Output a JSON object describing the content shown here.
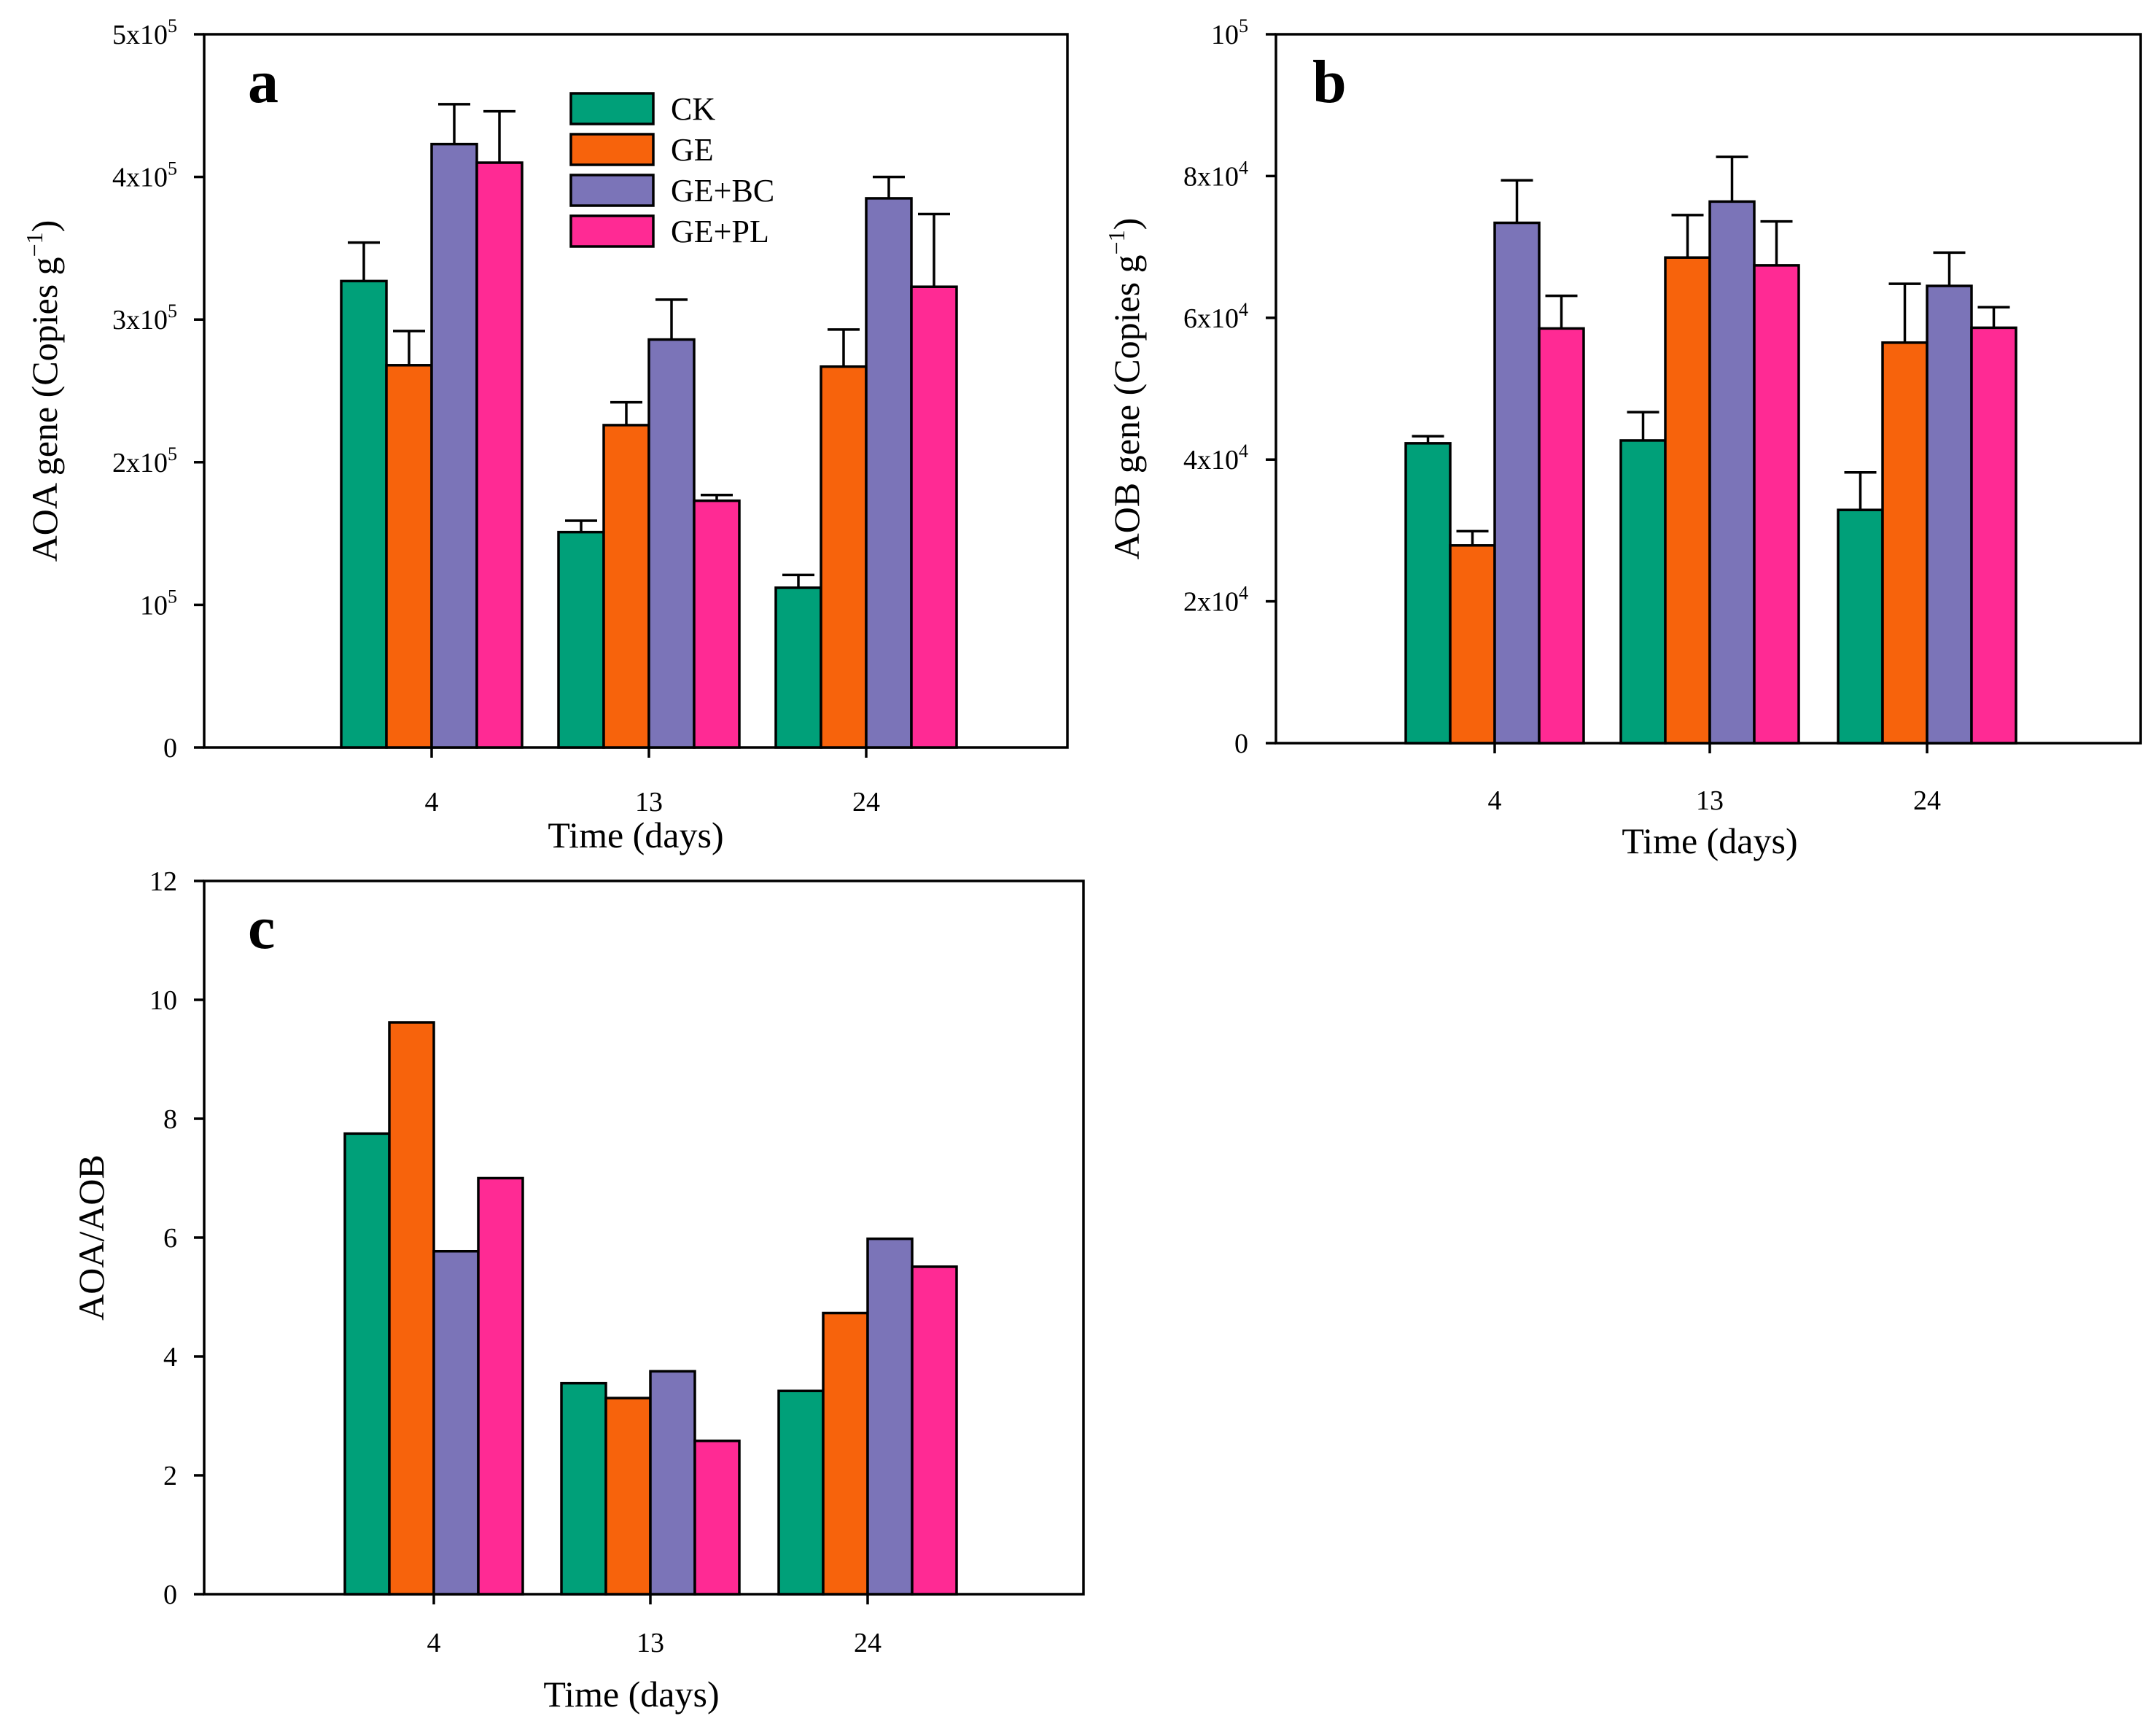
{
  "colors": {
    "CK": "#00A079",
    "GE": "#F7630C",
    "GE+BC": "#7B74B8",
    "GE+PL": "#FF2A94"
  },
  "legend": [
    "CK",
    "GE",
    "GE+BC",
    "GE+PL"
  ],
  "chart_data": [
    {
      "panel": "a",
      "type": "bar",
      "categories": [
        "4",
        "13",
        "24"
      ],
      "xlabel": "Time (days)",
      "ylabel": "AOA gene (Copies g−1)",
      "ylabel_base": "AOA gene (Copies g",
      "ylabel_sup": "−1",
      "ylabel_close": ")",
      "ylim": [
        0,
        500000
      ],
      "yticks": [
        {
          "value": 0,
          "base": "0",
          "exp": ""
        },
        {
          "value": 100000,
          "base": "10",
          "exp": "5"
        },
        {
          "value": 200000,
          "base": "2x10",
          "exp": "5"
        },
        {
          "value": 300000,
          "base": "3x10",
          "exp": "5"
        },
        {
          "value": 400000,
          "base": "4x10",
          "exp": "5"
        },
        {
          "value": 500000,
          "base": "5x10",
          "exp": "5"
        }
      ],
      "series": [
        {
          "name": "CK",
          "values": [
            327000,
            151000,
            112000
          ],
          "errors": [
            27000,
            8000,
            9000
          ]
        },
        {
          "name": "GE",
          "values": [
            268000,
            226000,
            267000
          ],
          "errors": [
            24000,
            16000,
            26000
          ]
        },
        {
          "name": "GE+BC",
          "values": [
            423000,
            286000,
            385000
          ],
          "errors": [
            28000,
            28000,
            15000
          ]
        },
        {
          "name": "GE+PL",
          "values": [
            410000,
            173000,
            323000
          ],
          "errors": [
            36000,
            4000,
            51000
          ]
        }
      ]
    },
    {
      "panel": "b",
      "type": "bar",
      "categories": [
        "4",
        "13",
        "24"
      ],
      "xlabel": "Time (days)",
      "ylabel": "AOB gene (Copies g−1)",
      "ylabel_base": "AOB gene (Copies g",
      "ylabel_sup": "−1",
      "ylabel_close": ")",
      "ylim": [
        0,
        100000
      ],
      "yticks": [
        {
          "value": 0,
          "base": "0",
          "exp": ""
        },
        {
          "value": 20000,
          "base": "2x10",
          "exp": "4"
        },
        {
          "value": 40000,
          "base": "4x10",
          "exp": "4"
        },
        {
          "value": 60000,
          "base": "6x10",
          "exp": "4"
        },
        {
          "value": 80000,
          "base": "8x10",
          "exp": "4"
        },
        {
          "value": 100000,
          "base": "10",
          "exp": "5"
        }
      ],
      "series": [
        {
          "name": "CK",
          "values": [
            42300,
            42700,
            32900
          ],
          "errors": [
            1000,
            4000,
            5300
          ]
        },
        {
          "name": "GE",
          "values": [
            27900,
            68500,
            56500
          ],
          "errors": [
            2000,
            6000,
            8300
          ]
        },
        {
          "name": "GE+BC",
          "values": [
            73400,
            76400,
            64500
          ],
          "errors": [
            6000,
            6300,
            4700
          ]
        },
        {
          "name": "GE+PL",
          "values": [
            58500,
            67400,
            58600
          ],
          "errors": [
            4600,
            6200,
            2900
          ]
        }
      ]
    },
    {
      "panel": "c",
      "type": "bar",
      "categories": [
        "4",
        "13",
        "24"
      ],
      "xlabel": "Time (days)",
      "ylabel": "AOA/AOB",
      "ylim": [
        0,
        12
      ],
      "yticks": [
        {
          "value": 0,
          "base": "0",
          "exp": ""
        },
        {
          "value": 2,
          "base": "2",
          "exp": ""
        },
        {
          "value": 4,
          "base": "4",
          "exp": ""
        },
        {
          "value": 6,
          "base": "6",
          "exp": ""
        },
        {
          "value": 8,
          "base": "8",
          "exp": ""
        },
        {
          "value": 10,
          "base": "10",
          "exp": ""
        },
        {
          "value": 12,
          "base": "12",
          "exp": ""
        }
      ],
      "series": [
        {
          "name": "CK",
          "values": [
            7.75,
            3.55,
            3.42
          ]
        },
        {
          "name": "GE",
          "values": [
            9.62,
            3.3,
            4.73
          ]
        },
        {
          "name": "GE+BC",
          "values": [
            5.77,
            3.75,
            5.98
          ]
        },
        {
          "name": "GE+PL",
          "values": [
            7.0,
            2.58,
            5.51
          ]
        }
      ]
    }
  ]
}
